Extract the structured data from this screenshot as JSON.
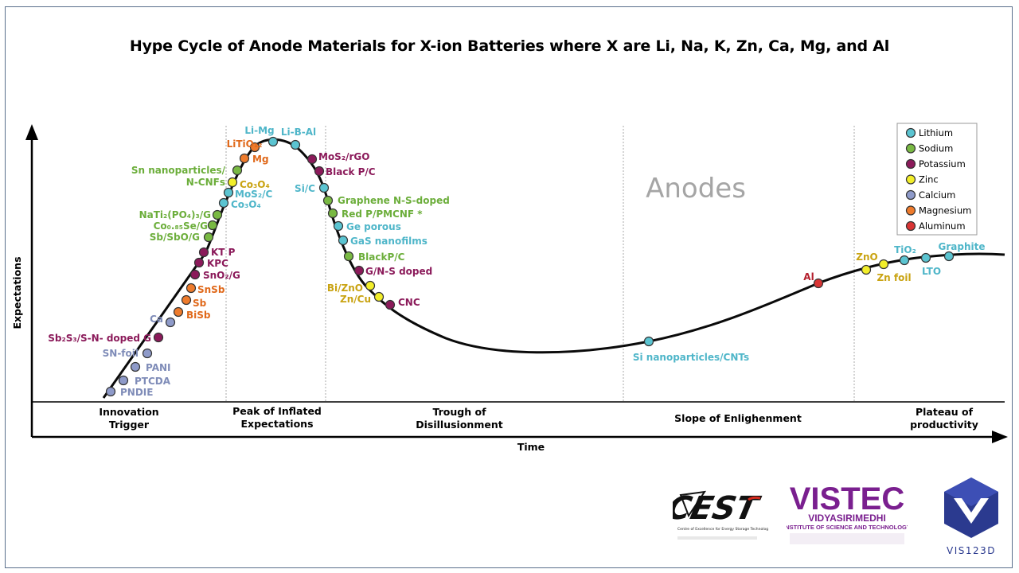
{
  "title": "Hype Cycle of Anode Materials for X-ion Batteries where X are Li, Na, K, Zn, Ca, Mg, and Al",
  "axes": {
    "y_label": "Expectations",
    "x_label": "Time"
  },
  "phases": [
    {
      "id": "innovation",
      "lines": [
        "Innovation",
        "Trigger"
      ]
    },
    {
      "id": "peak",
      "lines": [
        "Peak of Inflated",
        "Expectations"
      ]
    },
    {
      "id": "trough",
      "lines": [
        "Trough of",
        "Disillusionment"
      ]
    },
    {
      "id": "slope",
      "lines": [
        "Slope of Enlighenment"
      ]
    },
    {
      "id": "plateau",
      "lines": [
        "Plateau of",
        "productivity"
      ]
    }
  ],
  "watermark": "Anodes",
  "legend": [
    {
      "label": "Lithium",
      "color": "#5bc4d1"
    },
    {
      "label": "Sodium",
      "color": "#79b943"
    },
    {
      "label": "Potassium",
      "color": "#8b1a5a"
    },
    {
      "label": "Zinc",
      "color": "#f2ee2a"
    },
    {
      "label": "Calcium",
      "color": "#8e9ac9"
    },
    {
      "label": "Magnesium",
      "color": "#ee7b2c"
    },
    {
      "label": "Aluminum",
      "color": "#d93434"
    }
  ],
  "text_colors": {
    "Lithium": "#4fb6c9",
    "Sodium": "#6cae3b",
    "Potassium": "#8b1a5a",
    "Zinc": "#c9a312",
    "Calcium": "#7f8cb8",
    "Magnesium": "#e0691b",
    "Aluminum": "#b41f2d"
  },
  "materials": [
    {
      "name": "PNDIE",
      "element": "Calcium"
    },
    {
      "name": "PTCDA",
      "element": "Calcium"
    },
    {
      "name": "PANI",
      "element": "Calcium"
    },
    {
      "name": "SN-foil",
      "element": "Calcium"
    },
    {
      "name": "Sb₂S₃/S-N- doped G",
      "element": "Potassium"
    },
    {
      "name": "Ca",
      "element": "Calcium"
    },
    {
      "name": "BiSb",
      "element": "Magnesium"
    },
    {
      "name": "Sb",
      "element": "Magnesium"
    },
    {
      "name": "SnSb",
      "element": "Magnesium"
    },
    {
      "name": "SnO₂/G",
      "element": "Potassium"
    },
    {
      "name": "KPC",
      "element": "Potassium"
    },
    {
      "name": "KT P",
      "element": "Potassium"
    },
    {
      "name": "Sb/SbO/G",
      "element": "Sodium"
    },
    {
      "name": "Co₀.₈₅Se/G",
      "element": "Sodium"
    },
    {
      "name": "NaTi₂(PO₄)₃/G",
      "element": "Sodium"
    },
    {
      "name": "Co₃O₄",
      "element": "Lithium"
    },
    {
      "name": "MoS₂/C",
      "element": "Lithium"
    },
    {
      "name": "Co₃O₄",
      "element": "Zinc"
    },
    {
      "name": "Sn nanoparticles/\nN-CNFs",
      "element": "Sodium"
    },
    {
      "name": "Mg",
      "element": "Magnesium"
    },
    {
      "name": "LiTiO₁₂",
      "element": "Magnesium"
    },
    {
      "name": "Li-Mg",
      "element": "Lithium"
    },
    {
      "name": "Li-B-Al",
      "element": "Lithium"
    },
    {
      "name": "MoS₂/rGO",
      "element": "Potassium"
    },
    {
      "name": "Black P/C",
      "element": "Potassium"
    },
    {
      "name": "Si/C",
      "element": "Lithium"
    },
    {
      "name": "Graphene N-S-doped",
      "element": "Sodium"
    },
    {
      "name": "Red P/PMCNF *",
      "element": "Sodium"
    },
    {
      "name": "Ge porous",
      "element": "Lithium"
    },
    {
      "name": "GaS nanofilms",
      "element": "Lithium"
    },
    {
      "name": "BlackP/C",
      "element": "Sodium"
    },
    {
      "name": "G/N-S doped",
      "element": "Potassium"
    },
    {
      "name": "Bi/ZnO",
      "element": "Zinc"
    },
    {
      "name": "Zn/Cu",
      "element": "Zinc"
    },
    {
      "name": "CNC",
      "element": "Potassium"
    },
    {
      "name": "Si nanoparticles/CNTs",
      "element": "Lithium"
    },
    {
      "name": "Al",
      "element": "Aluminum"
    },
    {
      "name": "ZnO",
      "element": "Zinc"
    },
    {
      "name": "Zn foil",
      "element": "Zinc"
    },
    {
      "name": "TiO₂",
      "element": "Lithium"
    },
    {
      "name": "LTO",
      "element": "Lithium"
    },
    {
      "name": "Graphite",
      "element": "Lithium"
    }
  ],
  "logos": {
    "cest": {
      "text": "CEST",
      "caption": "Centre of Excellence for Energy Storage Technology"
    },
    "vistec": {
      "text": "VISTEC",
      "line1": "VIDYASIRIMEDHI",
      "line2": "INSTITUTE OF SCIENCE AND TECHNOLOGY"
    },
    "vis": {
      "text": "VIS123D"
    }
  }
}
